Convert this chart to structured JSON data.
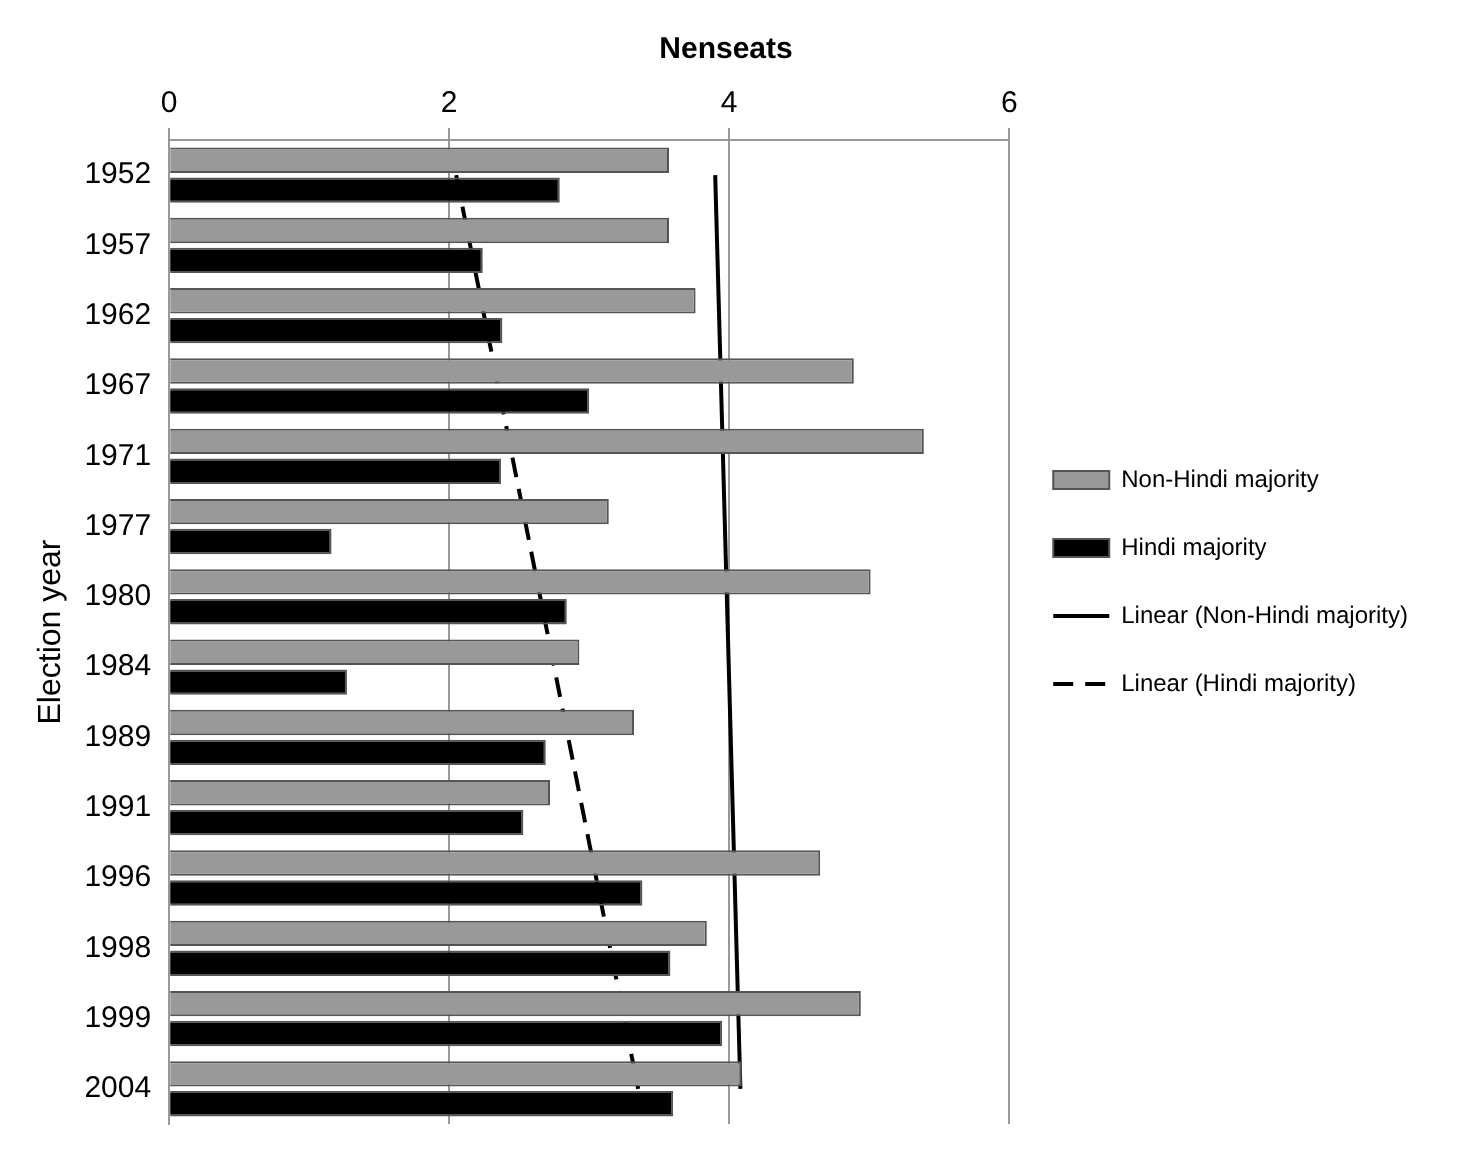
{
  "chart_data": {
    "type": "bar",
    "orientation": "horizontal",
    "title": "Nenseats",
    "ylabel": "Election year",
    "categories": [
      "1952",
      "1957",
      "1962",
      "1967",
      "1971",
      "1977",
      "1980",
      "1984",
      "1989",
      "1991",
      "1996",
      "1998",
      "1999",
      "2004"
    ],
    "series": [
      {
        "name": "Non-Hindi majority",
        "color": "#999999",
        "values": [
          3.57,
          3.57,
          3.76,
          4.89,
          5.39,
          3.14,
          5.01,
          2.93,
          3.32,
          2.72,
          4.65,
          3.84,
          4.94,
          4.09
        ]
      },
      {
        "name": "Hindi majority",
        "color": "#000000",
        "values": [
          2.79,
          2.24,
          2.38,
          3.0,
          2.37,
          1.16,
          2.84,
          1.27,
          2.69,
          2.53,
          3.38,
          3.58,
          3.95,
          3.6
        ]
      },
      {
        "name": "Linear (Non-Hindi majority)",
        "type": "line",
        "color": "#000000",
        "line_style": "solid",
        "values": [
          3.9,
          null,
          null,
          null,
          null,
          null,
          null,
          null,
          null,
          null,
          null,
          null,
          null,
          4.08
        ]
      },
      {
        "name": "Linear (Hindi majority)",
        "type": "line",
        "color": "#000000",
        "line_style": "dashed",
        "values": [
          2.05,
          null,
          null,
          null,
          null,
          null,
          null,
          null,
          null,
          null,
          null,
          null,
          null,
          3.35
        ]
      }
    ],
    "xlim": [
      0,
      6
    ],
    "xticks": [
      0,
      2,
      4,
      6
    ],
    "grid": "x",
    "legend": "right",
    "marker": "none"
  }
}
